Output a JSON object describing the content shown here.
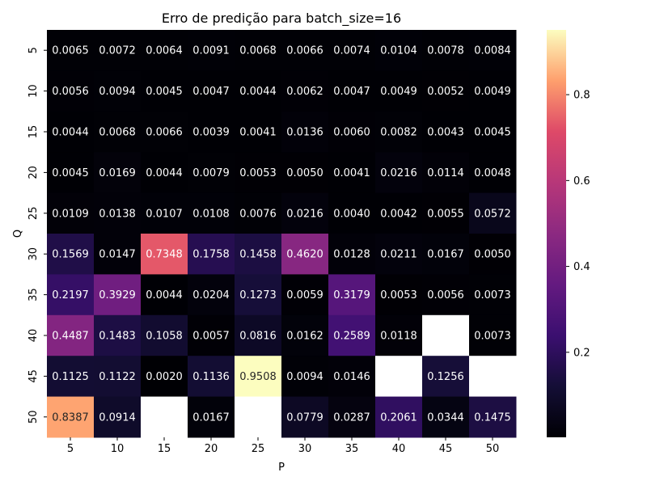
{
  "chart_data": {
    "type": "heatmap",
    "title": "Erro de predição para batch_size=16",
    "xlabel": "P",
    "ylabel": "Q",
    "x": [
      "5",
      "10",
      "15",
      "20",
      "25",
      "30",
      "35",
      "40",
      "45",
      "50"
    ],
    "y": [
      "5",
      "10",
      "15",
      "20",
      "25",
      "30",
      "35",
      "40",
      "45",
      "50"
    ],
    "values": [
      [
        0.0065,
        0.0072,
        0.0064,
        0.0091,
        0.0068,
        0.0066,
        0.0074,
        0.0104,
        0.0078,
        0.0084
      ],
      [
        0.0056,
        0.0094,
        0.0045,
        0.0047,
        0.0044,
        0.0062,
        0.0047,
        0.0049,
        0.0052,
        0.0049
      ],
      [
        0.0044,
        0.0068,
        0.0066,
        0.0039,
        0.0041,
        0.0136,
        0.006,
        0.0082,
        0.0043,
        0.0045
      ],
      [
        0.0045,
        0.0169,
        0.0044,
        0.0079,
        0.0053,
        0.005,
        0.0041,
        0.0216,
        0.0114,
        0.0048
      ],
      [
        0.0109,
        0.0138,
        0.0107,
        0.0108,
        0.0076,
        0.0216,
        0.004,
        0.0042,
        0.0055,
        0.0572
      ],
      [
        0.1569,
        0.0147,
        0.7348,
        0.1758,
        0.1458,
        0.462,
        0.0128,
        0.0211,
        0.0167,
        0.005
      ],
      [
        0.2197,
        0.3929,
        0.0044,
        0.0204,
        0.1273,
        0.0059,
        0.3179,
        0.0053,
        0.0056,
        0.0073
      ],
      [
        0.4487,
        0.1483,
        0.1058,
        0.0057,
        0.0816,
        0.0162,
        0.2589,
        0.0118,
        null,
        0.0073
      ],
      [
        0.1125,
        0.1122,
        0.002,
        0.1136,
        0.9508,
        0.0094,
        0.0146,
        null,
        0.1256,
        null
      ],
      [
        0.8387,
        0.0914,
        null,
        0.0167,
        null,
        0.0779,
        0.0287,
        0.2061,
        0.0344,
        0.1475
      ]
    ],
    "value_format": "4 decimals",
    "colormap": "magma",
    "color_range": [
      0.002,
      0.9508
    ],
    "colorbar_ticks": [
      "0.2",
      "0.4",
      "0.6",
      "0.8"
    ],
    "missing_cells_color": "#ffffff",
    "text_colors": {
      "on_dark": "#ffffff",
      "on_light": "#262626"
    }
  }
}
